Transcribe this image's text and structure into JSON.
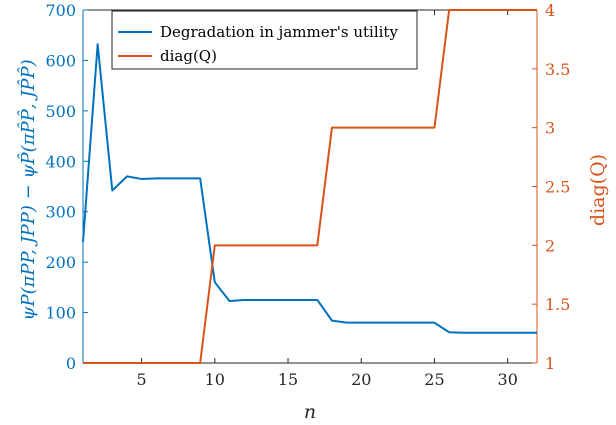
{
  "chart_data": {
    "type": "line",
    "xlabel": "n",
    "ylabel_left": "ψP(πPP, JPP) − ψP̂(πP̂P̂, JP̂P̂)",
    "ylabel_right": "diag(Q)",
    "xlim": [
      1,
      32
    ],
    "ylim_left": [
      0,
      700
    ],
    "ylim_right": [
      1,
      4
    ],
    "xticks": [
      5,
      10,
      15,
      20,
      25,
      30
    ],
    "yticks_left": [
      0,
      100,
      200,
      300,
      400,
      500,
      600,
      700
    ],
    "yticks_right": [
      "1",
      "1.5",
      "2",
      "2.5",
      "3",
      "3.5",
      "4"
    ],
    "grid": false,
    "legend_position": "top-left",
    "colors": {
      "left": "#0072bd",
      "right": "#d95319",
      "axis": "#262626"
    },
    "series": [
      {
        "name": "Degradation in jammer's utility",
        "axis": "left",
        "color": "#0072bd",
        "x": [
          1,
          2,
          3,
          4,
          5,
          6,
          7,
          8,
          9,
          10,
          11,
          12,
          13,
          14,
          15,
          16,
          17,
          18,
          19,
          20,
          21,
          22,
          23,
          24,
          25,
          26,
          27,
          28,
          29,
          30,
          31,
          32
        ],
        "y": [
          240,
          632,
          342,
          370,
          365,
          366,
          366,
          366,
          366,
          160,
          123,
          125,
          125,
          125,
          125,
          125,
          125,
          84,
          80,
          80,
          80,
          80,
          80,
          80,
          80,
          61,
          60,
          60,
          60,
          60,
          60,
          60
        ]
      },
      {
        "name": "diag(Q)",
        "axis": "right",
        "color": "#d95319",
        "x": [
          1,
          2,
          3,
          4,
          5,
          6,
          7,
          8,
          9,
          10,
          11,
          12,
          13,
          14,
          15,
          16,
          17,
          18,
          19,
          20,
          21,
          22,
          23,
          24,
          25,
          26,
          27,
          28,
          29,
          30,
          31,
          32
        ],
        "y": [
          1,
          1,
          1,
          1,
          1,
          1,
          1,
          1,
          1,
          2,
          2,
          2,
          2,
          2,
          2,
          2,
          2,
          3,
          3,
          3,
          3,
          3,
          3,
          3,
          3,
          4,
          4,
          4,
          4,
          4,
          4,
          4
        ]
      }
    ]
  }
}
